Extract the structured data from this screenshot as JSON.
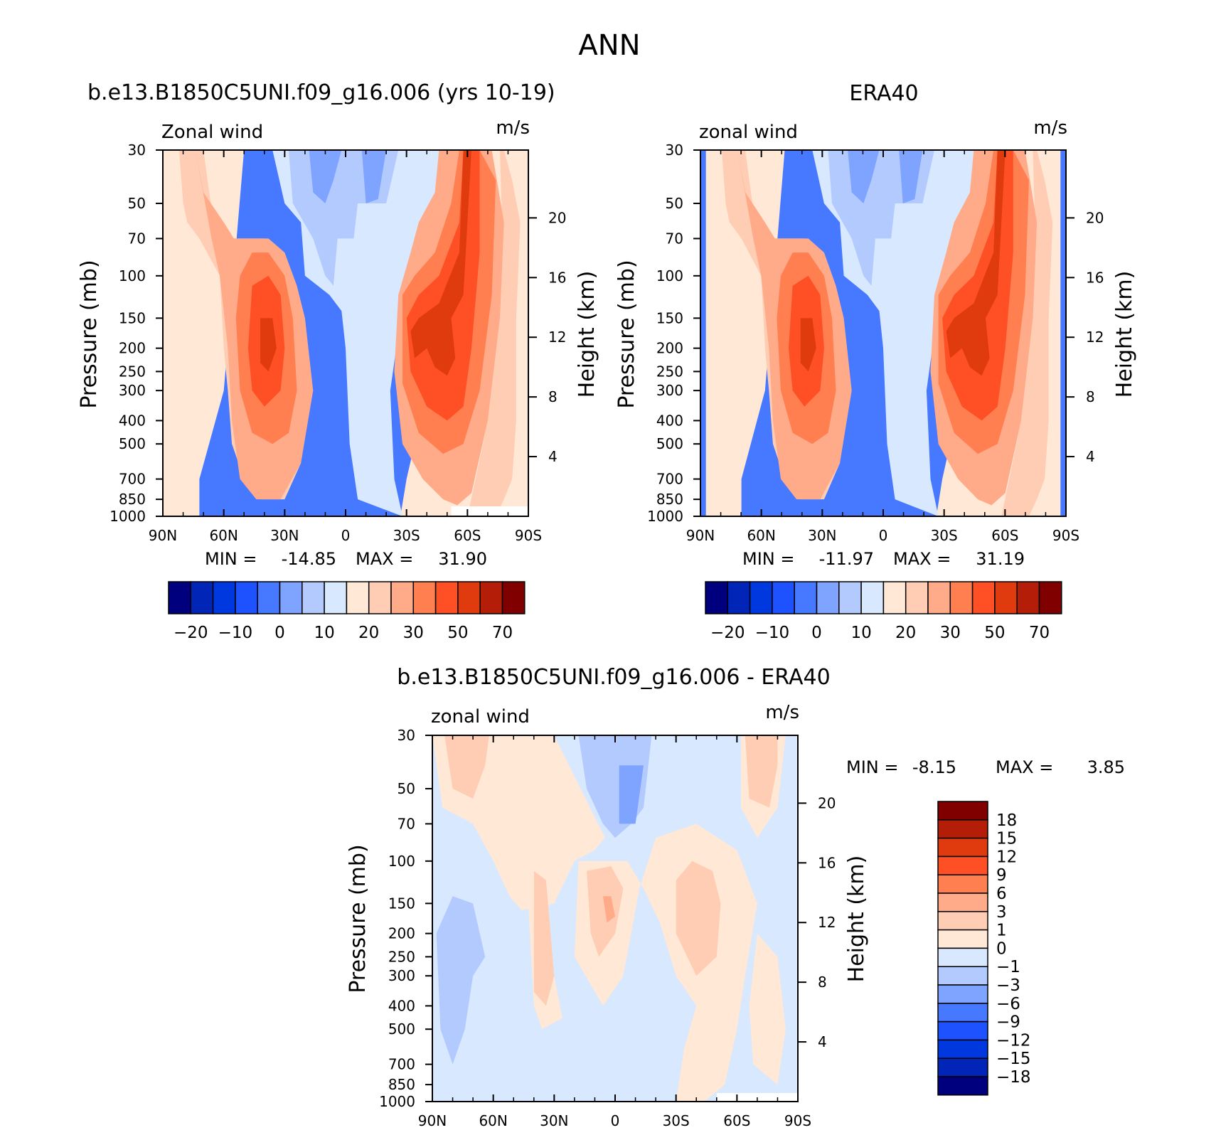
{
  "figure": {
    "title": "ANN",
    "colors": {
      "model_scale": [
        "#00007f",
        "#0025b7",
        "#0038e0",
        "#1e52ff",
        "#4679ff",
        "#7fa4ff",
        "#b3caff",
        "#d7e8ff",
        "#ffe9d6",
        "#ffcdb3",
        "#ffaa88",
        "#ff7f50",
        "#ff5025",
        "#e03a0f",
        "#b41e08",
        "#800000"
      ],
      "diff_scale": [
        "#00007f",
        "#0025b7",
        "#0038e0",
        "#1e52ff",
        "#4679ff",
        "#7fa4ff",
        "#b3caff",
        "#d7e8ff",
        "#ffe9d6",
        "#ffcdb3",
        "#ffaa88",
        "#ff7f50",
        "#ff5025",
        "#e03a0f",
        "#b41e08",
        "#800000"
      ]
    }
  },
  "chart_data": [
    {
      "id": "model",
      "type": "heatmap",
      "title": "b.e13.B1850C5UNI.f09_g16.006 (yrs 10-19)",
      "left_label": "Zonal wind",
      "right_label": "m/s",
      "xlabel": "",
      "ylabel": "Pressure (mb)",
      "ylabel_right": "Height (km)",
      "x_ticks": [
        "90N",
        "60N",
        "30N",
        "0",
        "30S",
        "60S",
        "90S"
      ],
      "x_range": [
        90,
        -90
      ],
      "y_ticks": [
        "30",
        "50",
        "70",
        "100",
        "150",
        "200",
        "250",
        "300",
        "400",
        "500",
        "700",
        "850",
        "1000"
      ],
      "y_range": [
        30,
        1000
      ],
      "height_ticks": [
        "20",
        "16",
        "12",
        "8",
        "4"
      ],
      "stats": {
        "min_label": "MIN =",
        "min": "-14.85",
        "max_label": "MAX =",
        "max": "31.90"
      },
      "colorbar_ticks": [
        "-20",
        "-10",
        "0",
        "10",
        "20",
        "30",
        "50",
        "70"
      ],
      "contours": [
        {
          "level": 2,
          "paths": [
            [
              [
                -72,
                1000
              ],
              [
                -55,
                1000
              ],
              [
                -40,
                1000
              ],
              [
                -20,
                1000
              ],
              [
                -4,
                1000
              ],
              [
                4,
                1000
              ],
              [
                20,
                1000
              ],
              [
                27,
                1000
              ],
              [
                30,
                700
              ],
              [
                40,
                300
              ],
              [
                52,
                150
              ],
              [
                60,
                60
              ],
              [
                70,
                30
              ],
              [
                72,
                30
              ],
              [
                80,
                30
              ],
              [
                90,
                30
              ],
              [
                90,
                1000
              ],
              [
                -90,
                1000
              ],
              [
                -90,
                30
              ],
              [
                -50,
                30
              ],
              [
                -60,
                300
              ],
              [
                -72,
                700
              ]
            ]
          ]
        },
        {
          "level": 1,
          "paths": [
            [
              [
                -36,
                30
              ],
              [
                -30,
                50
              ],
              [
                -22,
                60
              ],
              [
                -20,
                100
              ],
              [
                -8,
                120
              ],
              [
                -2,
                140
              ],
              [
                0,
                200
              ],
              [
                2,
                500
              ],
              [
                6,
                850
              ],
              [
                28,
                1000
              ],
              [
                24,
                700
              ],
              [
                22,
                300
              ],
              [
                30,
                100
              ],
              [
                44,
                50
              ],
              [
                52,
                30
              ]
            ]
          ]
        },
        {
          "level": 0,
          "paths": [
            [
              [
                -28,
                30
              ],
              [
                -26,
                50
              ],
              [
                -16,
                70
              ],
              [
                -10,
                100
              ],
              [
                -6,
                110
              ],
              [
                -4,
                70
              ],
              [
                4,
                70
              ],
              [
                6,
                50
              ],
              [
                20,
                50
              ],
              [
                26,
                30
              ]
            ]
          ]
        },
        {
          "level": -1,
          "paths": [
            [
              [
                -18,
                30
              ],
              [
                -16,
                45
              ],
              [
                -10,
                50
              ],
              [
                -6,
                40
              ],
              [
                -2,
                30
              ]
            ]
          ],
          "extra": [
            [
              [
                8,
                30
              ],
              [
                10,
                50
              ],
              [
                16,
                48
              ],
              [
                20,
                30
              ]
            ]
          ]
        },
        {
          "level": 3,
          "paths": [
            [
              [
                -82,
                30
              ],
              [
                -80,
                50
              ],
              [
                -78,
                60
              ],
              [
                -72,
                70
              ],
              [
                -62,
                100
              ],
              [
                -60,
                200
              ],
              [
                -58,
                300
              ],
              [
                -56,
                500
              ],
              [
                -50,
                700
              ],
              [
                -42,
                850
              ],
              [
                -30,
                850
              ],
              [
                -22,
                600
              ],
              [
                -20,
                300
              ],
              [
                -25,
                150
              ],
              [
                -30,
                100
              ],
              [
                -40,
                70
              ],
              [
                -55,
                70
              ],
              [
                -65,
                60
              ],
              [
                -68,
                40
              ],
              [
                -70,
                30
              ]
            ]
          ],
          "extra": [
            [
              [
                78,
                30
              ],
              [
                82,
                40
              ],
              [
                86,
                60
              ],
              [
                84,
                150
              ],
              [
                84,
                400
              ],
              [
                82,
                700
              ],
              [
                78,
                850
              ],
              [
                74,
                1000
              ],
              [
                60,
                1000
              ],
              [
                64,
                700
              ],
              [
                70,
                400
              ],
              [
                76,
                150
              ],
              [
                77,
                60
              ],
              [
                76,
                30
              ]
            ]
          ]
        },
        {
          "level": 4,
          "paths": [
            [
              [
                -74,
                30
              ],
              [
                -70,
                45
              ],
              [
                -60,
                60
              ],
              [
                -55,
                70
              ],
              [
                -38,
                70
              ],
              [
                -30,
                80
              ],
              [
                -24,
                110
              ],
              [
                -20,
                150
              ],
              [
                -16,
                300
              ],
              [
                -22,
                600
              ],
              [
                -32,
                850
              ],
              [
                -44,
                850
              ],
              [
                -52,
                700
              ],
              [
                -56,
                400
              ],
              [
                -58,
                200
              ],
              [
                -62,
                100
              ],
              [
                -66,
                70
              ]
            ]
          ],
          "extra": [
            [
              [
                26,
                120
              ],
              [
                24,
                250
              ],
              [
                28,
                500
              ],
              [
                38,
                700
              ],
              [
                48,
                850
              ],
              [
                55,
                900
              ],
              [
                62,
                800
              ],
              [
                70,
                400
              ],
              [
                76,
                150
              ],
              [
                78,
                60
              ],
              [
                72,
                30
              ],
              [
                46,
                30
              ],
              [
                44,
                45
              ],
              [
                36,
                60
              ],
              [
                32,
                80
              ]
            ]
          ]
        },
        {
          "level": 5,
          "paths": [
            [
              [
                -52,
                100
              ],
              [
                -46,
                80
              ],
              [
                -38,
                80
              ],
              [
                -30,
                100
              ],
              [
                -26,
                150
              ],
              [
                -24,
                300
              ],
              [
                -28,
                450
              ],
              [
                -36,
                500
              ],
              [
                -46,
                450
              ],
              [
                -52,
                300
              ],
              [
                -54,
                150
              ]
            ]
          ],
          "extra": [
            [
              [
                28,
                120
              ],
              [
                28,
                280
              ],
              [
                36,
                450
              ],
              [
                48,
                550
              ],
              [
                58,
                500
              ],
              [
                66,
                300
              ],
              [
                72,
                120
              ],
              [
                74,
                40
              ],
              [
                66,
                30
              ],
              [
                56,
                30
              ],
              [
                52,
                50
              ],
              [
                44,
                80
              ],
              [
                34,
                100
              ]
            ]
          ]
        },
        {
          "level": 6,
          "paths": [
            [
              [
                -46,
                110
              ],
              [
                -38,
                100
              ],
              [
                -32,
                120
              ],
              [
                -30,
                200
              ],
              [
                -32,
                300
              ],
              [
                -40,
                350
              ],
              [
                -46,
                300
              ],
              [
                -48,
                200
              ]
            ]
          ],
          "extra": [
            [
              [
                30,
                150
              ],
              [
                32,
                250
              ],
              [
                40,
                350
              ],
              [
                50,
                400
              ],
              [
                58,
                350
              ],
              [
                62,
                200
              ],
              [
                66,
                80
              ],
              [
                66,
                30
              ],
              [
                58,
                30
              ],
              [
                56,
                60
              ],
              [
                46,
                100
              ],
              [
                36,
                120
              ]
            ]
          ]
        },
        {
          "level": 7,
          "paths": [
            [
              [
                -42,
                150
              ],
              [
                -36,
                150
              ],
              [
                -34,
                200
              ],
              [
                -38,
                250
              ],
              [
                -42,
                230
              ]
            ]
          ],
          "extra": [
            [
              [
                32,
                170
              ],
              [
                34,
                220
              ],
              [
                40,
                200
              ],
              [
                44,
                240
              ],
              [
                50,
                260
              ],
              [
                54,
                220
              ],
              [
                52,
                150
              ],
              [
                58,
                120
              ],
              [
                60,
                60
              ],
              [
                62,
                30
              ],
              [
                58,
                30
              ],
              [
                56,
                80
              ],
              [
                46,
                130
              ],
              [
                36,
                150
              ]
            ]
          ]
        }
      ]
    },
    {
      "id": "obs",
      "type": "heatmap",
      "title": "ERA40",
      "left_label": "zonal wind",
      "right_label": "m/s",
      "xlabel": "",
      "ylabel": "Pressure (mb)",
      "ylabel_right": "Height (km)",
      "x_ticks": [
        "90N",
        "60N",
        "30N",
        "0",
        "30S",
        "60S",
        "90S"
      ],
      "x_range": [
        90,
        -90
      ],
      "y_ticks": [
        "30",
        "50",
        "70",
        "100",
        "150",
        "200",
        "250",
        "300",
        "400",
        "500",
        "700",
        "850",
        "1000"
      ],
      "y_range": [
        30,
        1000
      ],
      "height_ticks": [
        "20",
        "16",
        "12",
        "8",
        "4"
      ],
      "stats": {
        "min_label": "MIN =",
        "min": "-11.97",
        "max_label": "MAX =",
        "max": "31.19"
      },
      "colorbar_ticks": [
        "-20",
        "-10",
        "0",
        "10",
        "20",
        "30",
        "50",
        "70"
      ]
    },
    {
      "id": "diff",
      "type": "heatmap",
      "title": "b.e13.B1850C5UNI.f09_g16.006 - ERA40",
      "left_label": "zonal wind",
      "right_label": "m/s",
      "xlabel": "",
      "ylabel": "Pressure (mb)",
      "ylabel_right": "Height (km)",
      "x_ticks": [
        "90N",
        "60N",
        "30N",
        "0",
        "30S",
        "60S",
        "90S"
      ],
      "x_range": [
        90,
        -90
      ],
      "y_ticks": [
        "30",
        "50",
        "70",
        "100",
        "150",
        "200",
        "250",
        "300",
        "400",
        "500",
        "700",
        "850",
        "1000"
      ],
      "y_range": [
        30,
        1000
      ],
      "height_ticks": [
        "20",
        "16",
        "12",
        "8",
        "4"
      ],
      "stats": {
        "min_label": "MIN =",
        "min": "-8.15",
        "max_label": "MAX =",
        "max": "3.85"
      },
      "colorbar_ticks": [
        "18",
        "15",
        "12",
        "9",
        "6",
        "3",
        "1",
        "0",
        "-1",
        "-3",
        "-6",
        "-9",
        "-12",
        "-15",
        "-18"
      ]
    }
  ]
}
